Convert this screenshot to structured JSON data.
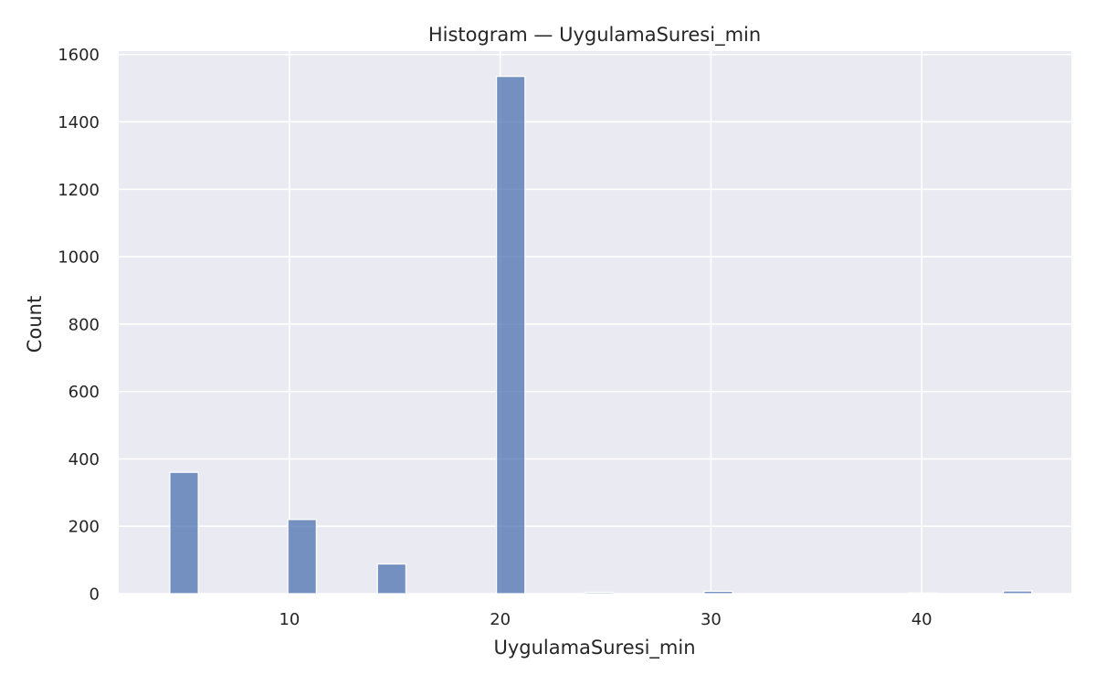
{
  "chart_data": {
    "type": "bar",
    "title": "Histogram — UygulamaSuresi_min",
    "xlabel": "UygulamaSuresi_min",
    "ylabel": "Count",
    "xlim": [
      1.9,
      47.1
    ],
    "ylim": [
      0,
      1610
    ],
    "xticks": [
      10,
      20,
      30,
      40
    ],
    "yticks": [
      0,
      200,
      400,
      600,
      800,
      1000,
      1200,
      1400,
      1600
    ],
    "bin_width": 1.35,
    "grid": true,
    "colors": {
      "plot_bg": "#eaeaf2",
      "bar": "#4c72b0",
      "grid": "#ffffff"
    },
    "bins": [
      {
        "x": 5.0,
        "count": 360
      },
      {
        "x": 10.6,
        "count": 220
      },
      {
        "x": 14.85,
        "count": 88
      },
      {
        "x": 20.5,
        "count": 1535
      },
      {
        "x": 24.7,
        "count": 4
      },
      {
        "x": 30.35,
        "count": 7
      },
      {
        "x": 40.0,
        "count": 2
      },
      {
        "x": 44.55,
        "count": 8
      }
    ]
  }
}
